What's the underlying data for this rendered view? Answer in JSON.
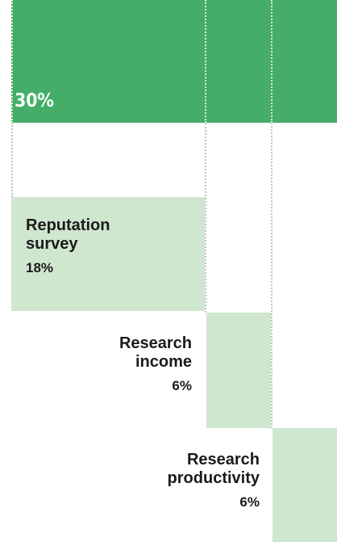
{
  "chart_data": {
    "type": "bar",
    "title": "",
    "series": [
      {
        "label": "",
        "value_label": "30%",
        "value": 30
      },
      {
        "label": "Reputation\nsurvey",
        "value_label": "18%",
        "value": 18
      },
      {
        "label": "Research\nincome",
        "value_label": "6%",
        "value": 6
      },
      {
        "label": "Research\nproductivity",
        "value_label": "6%",
        "value": 6
      }
    ],
    "colors": {
      "primary": "#45ad68",
      "secondary": "#cfe6cf",
      "grid": "#b9c7bc"
    }
  }
}
